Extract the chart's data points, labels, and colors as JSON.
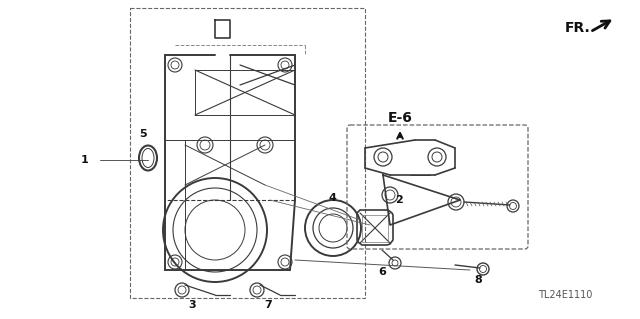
{
  "bg_color": "#ffffff",
  "line_color": "#3a3a3a",
  "dash_color": "#666666",
  "title_code": "TL24E1110",
  "fr_label": "FR.",
  "e6_label": "E-6",
  "figsize": [
    6.4,
    3.19
  ],
  "dpi": 100,
  "xlim": [
    0,
    640
  ],
  "ylim": [
    0,
    319
  ]
}
